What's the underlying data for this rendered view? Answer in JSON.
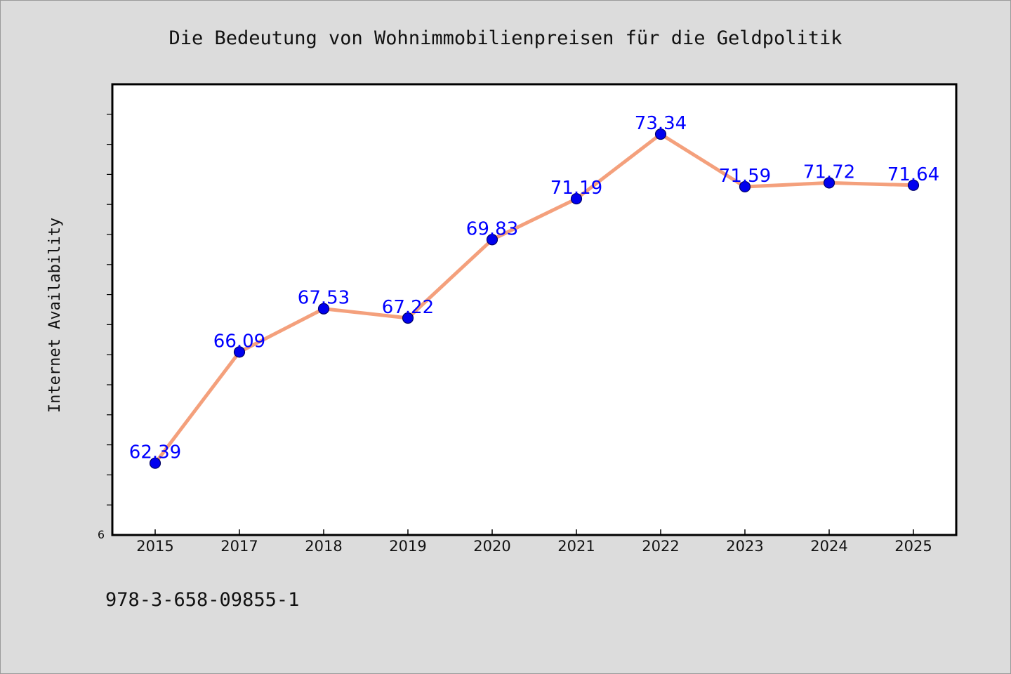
{
  "footnote": "978-3-658-09855-1",
  "colors": {
    "background": "#dcdcdc",
    "plot_background": "#ffffff",
    "line": "#f4a07c",
    "marker": "#0000ee",
    "marker_edge": "#000066",
    "data_label": "#0000ff"
  },
  "chart_data": {
    "type": "line",
    "title": "Die Bedeutung von Wohnimmobilienpreisen für die Geldpolitik",
    "xlabel": "",
    "ylabel": "Internet Availability",
    "categories": [
      "2015",
      "2017",
      "2018",
      "2019",
      "2020",
      "2021",
      "2022",
      "2023",
      "2024",
      "2025"
    ],
    "series": [
      {
        "values": [
          62.39,
          66.09,
          67.53,
          67.22,
          69.83,
          71.19,
          73.34,
          71.59,
          71.72,
          71.64
        ],
        "labels": [
          "62.39",
          "66.09",
          "67.53",
          "67.22",
          "69.83",
          "71.19",
          "73.34",
          "71.59",
          "71.72",
          "71.64"
        ]
      }
    ],
    "ylim": [
      60,
      75
    ],
    "ytick_labels": [
      "6"
    ],
    "grid": false,
    "legend": "none",
    "marker": "circle"
  }
}
